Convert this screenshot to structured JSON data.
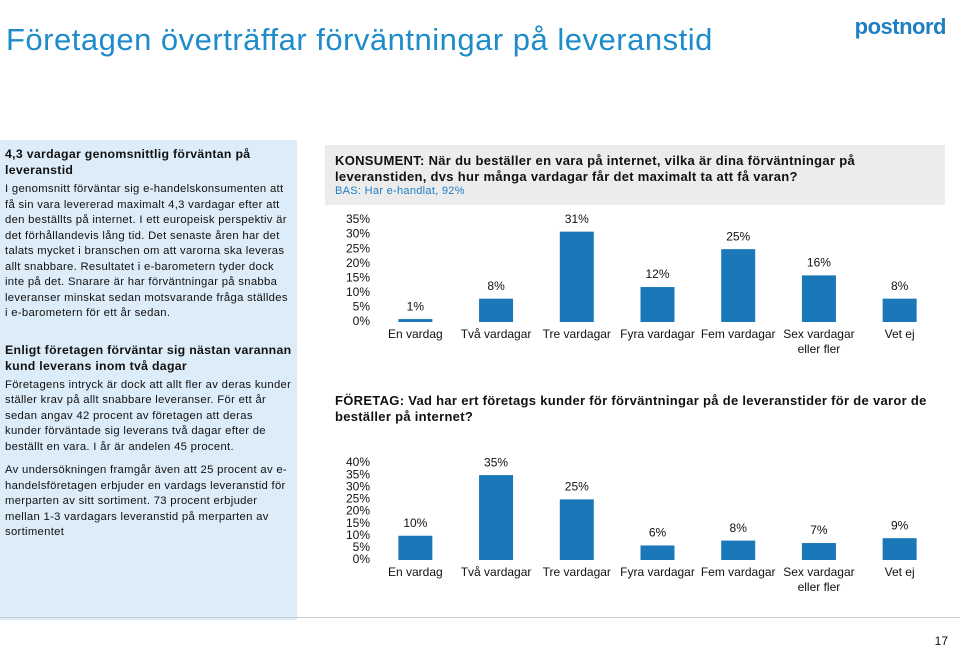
{
  "title": "Företagen överträffar förväntningar på leveranstid",
  "logo": "postnord",
  "sidebar": [
    {
      "heading": "4,3 vardagar genomsnittlig förväntan på leveranstid",
      "paragraphs": [
        "I genomsnitt förväntar sig e-handelskonsumenten att få sin vara levererad maximalt 4,3 vardagar efter att den beställts på internet. I ett europeisk perspektiv är det förhållandevis lång tid. Det senaste åren har det talats mycket i branschen om att varorna ska leveras allt snabbare. Resultatet i e-barometern tyder dock inte på det. Snarare är har förväntningar på snabba leveranser minskat sedan motsvarande fråga ställdes i e-barometern för ett år sedan."
      ]
    },
    {
      "heading": "Enligt företagen förväntar sig nästan varannan kund leverans inom två dagar",
      "paragraphs": [
        "Företagens intryck är dock att allt fler av deras kunder ställer krav på allt snabbare leveranser. För ett år sedan angav 42 procent av företagen att deras kunder förväntade sig leverans två dagar efter de beställt en vara. I år är andelen 45 procent.",
        "Av undersökningen framgår även att 25 procent av e-handelsföretagen erbjuder en vardags leveranstid för merparten av sitt sortiment. 73 procent erbjuder mellan 1-3 vardagars leveranstid på merparten av sortimentet"
      ]
    }
  ],
  "chart_data": [
    {
      "type": "bar",
      "title": "KONSUMENT: När du beställer en vara på internet, vilka är dina förväntningar på leveranstiden, dvs hur många vardagar får det maximalt ta att få varan?",
      "subtitle": "BAS: Har e-handlat, 92%",
      "categories": [
        "En vardag",
        "Två vardagar",
        "Tre vardagar",
        "Fyra vardagar",
        "Fem vardagar",
        "Sex vardagar eller fler",
        "Vet ej"
      ],
      "values": [
        1,
        8,
        31,
        12,
        25,
        16,
        8
      ],
      "value_labels": [
        "1%",
        "8%",
        "31%",
        "12%",
        "25%",
        "16%",
        "8%"
      ],
      "color": "#1a78b8",
      "ylim": [
        0,
        35
      ],
      "yticks": [
        {
          "value": 0,
          "label": "0%"
        },
        {
          "value": 5,
          "label": "5%"
        },
        {
          "value": 10,
          "label": "10%"
        },
        {
          "value": 15,
          "label": "15%"
        },
        {
          "value": 20,
          "label": "20%"
        },
        {
          "value": 25,
          "label": "25%"
        },
        {
          "value": 30,
          "label": "30%"
        },
        {
          "value": 35,
          "label": "35%"
        }
      ]
    },
    {
      "type": "bar",
      "title": "FÖRETAG: Vad har ert företags kunder för förväntningar på de leveranstider för de varor de beställer på internet?",
      "categories": [
        "En vardag",
        "Två vardagar",
        "Tre vardagar",
        "Fyra vardagar",
        "Fem vardagar",
        "Sex vardagar eller fler",
        "Vet ej"
      ],
      "values": [
        10,
        35,
        25,
        6,
        8,
        7,
        9
      ],
      "value_labels": [
        "10%",
        "35%",
        "25%",
        "6%",
        "8%",
        "7%",
        "9%"
      ],
      "color": "#1a78b8",
      "ylim": [
        0,
        40
      ],
      "yticks": [
        {
          "value": 0,
          "label": "0%"
        },
        {
          "value": 5,
          "label": "5%"
        },
        {
          "value": 10,
          "label": "10%"
        },
        {
          "value": 15,
          "label": "15%"
        },
        {
          "value": 20,
          "label": "20%"
        },
        {
          "value": 25,
          "label": "25%"
        },
        {
          "value": 30,
          "label": "30%"
        },
        {
          "value": 35,
          "label": "35%"
        },
        {
          "value": 40,
          "label": "40%"
        }
      ]
    }
  ],
  "page_number": "17"
}
